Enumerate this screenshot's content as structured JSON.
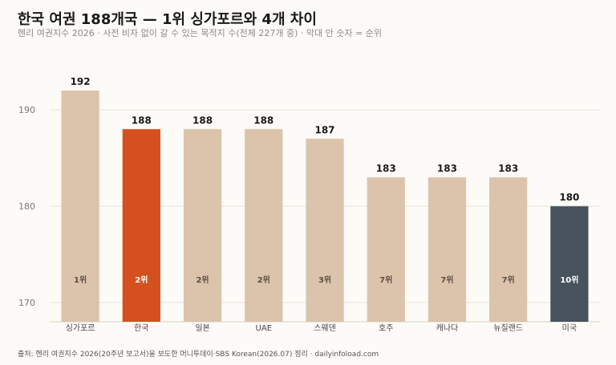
{
  "title": "한국 여권 188개국 — 1위 싱가포르와 4개 차이",
  "subtitle": "헨리 여권지수 2026 · 사전 비자 없이 갈 수 있는 목적지 수(전체 227개 중) · 막대 안 숫자 = 순위",
  "source": "출처: 헨리 여권지수 2026(20주년 보고서)을 보도한 머니투데이·SBS Korean(2026.07) 정리 · dailyinfoload.com",
  "colors": {
    "default": "#dbc4ab",
    "highlight": "#d4511f",
    "lowlight": "#48535e"
  },
  "chart_data": {
    "type": "bar",
    "categories": [
      "싱가포르",
      "한국",
      "일본",
      "UAE",
      "스웨덴",
      "호주",
      "캐나다",
      "뉴질랜드",
      "미국"
    ],
    "values": [
      192,
      188,
      188,
      188,
      187,
      183,
      183,
      183,
      180
    ],
    "value_labels": [
      "192",
      "188",
      "188",
      "188",
      "187",
      "183",
      "183",
      "183",
      "180"
    ],
    "rank_labels": [
      "1위",
      "2위",
      "2위",
      "2위",
      "3위",
      "7위",
      "7위",
      "7위",
      "10위"
    ],
    "bar_colors": [
      "default",
      "highlight",
      "default",
      "default",
      "default",
      "default",
      "default",
      "default",
      "lowlight"
    ],
    "ylim": [
      168,
      196
    ],
    "yticks": [
      170,
      180,
      190
    ],
    "grid": true
  }
}
